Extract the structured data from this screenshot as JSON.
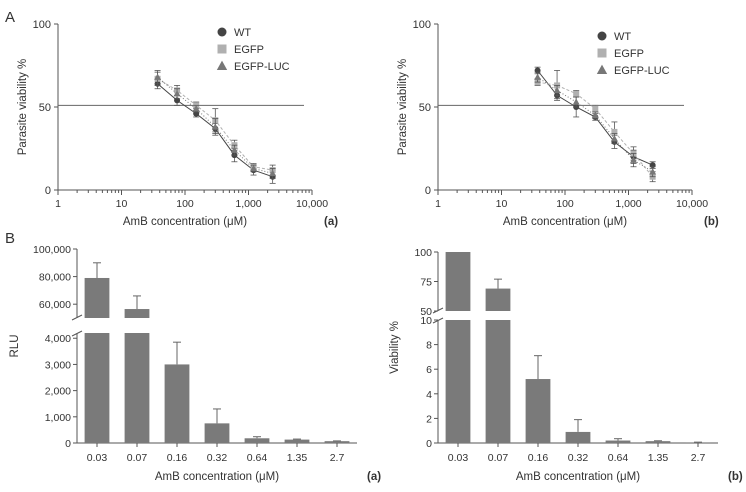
{
  "panel_labels": {
    "A": "A",
    "B": "B"
  },
  "colors": {
    "wt": "#444444",
    "egfp": "#b0b0b0",
    "egfp_luc": "#777777",
    "bar": "#7a7a7a",
    "axis": "#555555"
  },
  "chart_data": [
    {
      "id": "A-a",
      "type": "line",
      "label": "(a)",
      "xlabel": "AmB concentration (μM)",
      "ylabel": "Parasite viability %",
      "xscale": "log",
      "xlim": [
        1,
        10000
      ],
      "ylim": [
        0,
        100
      ],
      "xticks": [
        "1",
        "10",
        "100",
        "1,000",
        "10,000"
      ],
      "yticks": [
        "0",
        "50",
        "100"
      ],
      "hline": 51,
      "legend_position": "top-right",
      "x": [
        37,
        75,
        150,
        300,
        600,
        1200,
        2400
      ],
      "series": [
        {
          "name": "WT",
          "marker": "circle",
          "values": [
            64,
            54,
            46,
            37,
            21,
            12,
            8
          ],
          "err": [
            3,
            3,
            2,
            3,
            4,
            3,
            4
          ]
        },
        {
          "name": "EGFP",
          "marker": "square",
          "values": [
            67,
            60,
            51,
            42,
            27,
            14,
            12
          ],
          "err": [
            4,
            3,
            2,
            7,
            3,
            2,
            3
          ]
        },
        {
          "name": "EGFP-LUC",
          "marker": "triangle",
          "values": [
            68,
            58,
            49,
            38,
            24,
            13,
            10
          ],
          "err": [
            4,
            3,
            2,
            5,
            3,
            2,
            3
          ]
        }
      ]
    },
    {
      "id": "A-b",
      "type": "line",
      "label": "(b)",
      "xlabel": "AmB concentration (μM)",
      "ylabel": "Parasite viability %",
      "xscale": "log",
      "xlim": [
        1,
        10000
      ],
      "ylim": [
        0,
        100
      ],
      "xticks": [
        "1",
        "10",
        "100",
        "1,000",
        "10,000"
      ],
      "yticks": [
        "0",
        "50",
        "100"
      ],
      "hline": 51,
      "legend_position": "top-right",
      "x": [
        37,
        75,
        150,
        300,
        600,
        1200,
        2400
      ],
      "series": [
        {
          "name": "WT",
          "marker": "circle",
          "values": [
            72,
            57,
            50,
            44,
            29,
            20,
            15
          ],
          "err": [
            2,
            2,
            6,
            2,
            4,
            4,
            2
          ]
        },
        {
          "name": "EGFP",
          "marker": "square",
          "values": [
            65,
            63,
            58,
            49,
            35,
            22,
            8
          ],
          "err": [
            2,
            9,
            2,
            2,
            6,
            4,
            3
          ]
        },
        {
          "name": "EGFP-LUC",
          "marker": "triangle",
          "values": [
            68,
            60,
            53,
            45,
            31,
            18,
            11
          ],
          "err": [
            3,
            3,
            3,
            2,
            3,
            4,
            3
          ]
        }
      ]
    },
    {
      "id": "B-a",
      "type": "bar",
      "label": "(a)",
      "xlabel": "AmB concentration (μM)",
      "ylabel": "RLU",
      "categories": [
        "0.03",
        "0.07",
        "0.16",
        "0.32",
        "0.64",
        "1.35",
        "2.7"
      ],
      "values": [
        79000,
        56500,
        3000,
        750,
        180,
        130,
        70
      ],
      "err": [
        11000,
        9500,
        850,
        550,
        60,
        20,
        10
      ],
      "broken_axis": {
        "upper_ylim": [
          50000,
          100000
        ],
        "lower_ylim": [
          0,
          4200
        ]
      },
      "upper_yticks": [
        "60,000",
        "80,000",
        "100,000"
      ],
      "lower_yticks": [
        "0",
        "1,000",
        "2,000",
        "3,000",
        "4,000"
      ]
    },
    {
      "id": "B-b",
      "type": "bar",
      "label": "(b)",
      "xlabel": "AmB concentration (μM)",
      "ylabel": "Viability %",
      "categories": [
        "0.03",
        "0.07",
        "0.16",
        "0.32",
        "0.64",
        "1.35",
        "2.7"
      ],
      "values": [
        100,
        69,
        5.2,
        0.9,
        0.2,
        0.15,
        0.05
      ],
      "err": [
        0,
        8,
        1.9,
        1.0,
        0.15,
        0.03,
        0.02
      ],
      "broken_axis": {
        "upper_ylim": [
          50,
          100
        ],
        "lower_ylim": [
          0,
          10
        ]
      },
      "upper_yticks": [
        "50",
        "75",
        "100"
      ],
      "lower_yticks": [
        "0",
        "2",
        "4",
        "6",
        "8",
        "10"
      ]
    }
  ]
}
